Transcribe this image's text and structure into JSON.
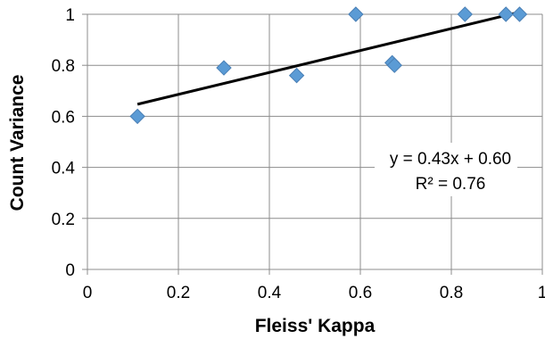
{
  "chart_data": {
    "type": "scatter",
    "xlabel": "Fleiss' Kappa",
    "ylabel": "Count Variance",
    "xlim": [
      0,
      1
    ],
    "ylim": [
      0,
      1
    ],
    "x_ticks": [
      "0",
      "0.2",
      "0.4",
      "0.6",
      "0.8",
      "1"
    ],
    "y_ticks": [
      "0",
      "0.2",
      "0.4",
      "0.6",
      "0.8",
      "1"
    ],
    "grid": true,
    "series": [
      {
        "points": [
          {
            "x": 0.11,
            "y": 0.6
          },
          {
            "x": 0.3,
            "y": 0.79
          },
          {
            "x": 0.46,
            "y": 0.76
          },
          {
            "x": 0.59,
            "y": 1.0
          },
          {
            "x": 0.67,
            "y": 0.81
          },
          {
            "x": 0.675,
            "y": 0.8
          },
          {
            "x": 0.83,
            "y": 1.0
          },
          {
            "x": 0.92,
            "y": 1.0
          },
          {
            "x": 0.95,
            "y": 1.0
          }
        ],
        "marker": "diamond",
        "color": "#5b9bd5"
      }
    ],
    "trendline": {
      "slope": 0.43,
      "intercept": 0.6,
      "x_range": [
        0.11,
        0.95
      ],
      "color": "#000000",
      "equation": "y = 0.43x + 0.60",
      "r_squared": "R² = 0.76"
    }
  }
}
